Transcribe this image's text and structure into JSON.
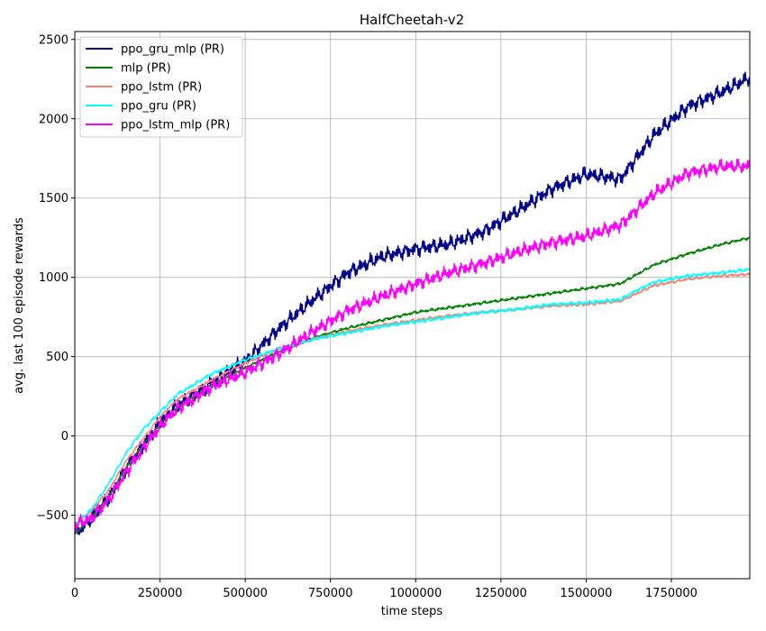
{
  "chart_data": {
    "type": "line",
    "title": "HalfCheetah-v2",
    "xlabel": "time steps",
    "ylabel": "avg. last 100 episode rewards",
    "xlim": [
      0,
      1980000
    ],
    "ylim": [
      -900,
      2550
    ],
    "xticks": [
      0,
      250000,
      500000,
      750000,
      1000000,
      1250000,
      1500000,
      1750000
    ],
    "yticks": [
      -500,
      0,
      500,
      1000,
      1500,
      2000,
      2500
    ],
    "xtick_labels": [
      "0",
      "250000",
      "500000",
      "750000",
      "1000000",
      "1250000",
      "1500000",
      "1750000"
    ],
    "ytick_labels": [
      "−500",
      "0",
      "500",
      "1000",
      "1500",
      "2000",
      "2500"
    ],
    "grid": true,
    "legend_position": "top-left",
    "series": [
      {
        "name": "ppo_gru_mlp (PR)",
        "color": "#00008b",
        "noise": 60,
        "x": [
          0,
          50000,
          100000,
          150000,
          200000,
          250000,
          300000,
          400000,
          500000,
          600000,
          700000,
          800000,
          900000,
          1000000,
          1100000,
          1200000,
          1300000,
          1400000,
          1500000,
          1600000,
          1650000,
          1700000,
          1800000,
          1900000,
          1980000
        ],
        "y": [
          -620,
          -520,
          -390,
          -200,
          -60,
          80,
          190,
          330,
          470,
          680,
          860,
          1030,
          1130,
          1180,
          1210,
          1290,
          1420,
          1560,
          1650,
          1620,
          1760,
          1900,
          2080,
          2170,
          2260
        ]
      },
      {
        "name": "mlp (PR)",
        "color": "#008000",
        "noise": 12,
        "x": [
          0,
          50000,
          100000,
          150000,
          200000,
          250000,
          300000,
          400000,
          500000,
          600000,
          700000,
          800000,
          900000,
          1000000,
          1100000,
          1200000,
          1300000,
          1400000,
          1500000,
          1600000,
          1650000,
          1700000,
          1800000,
          1900000,
          1980000
        ],
        "y": [
          -620,
          -510,
          -380,
          -200,
          -60,
          70,
          180,
          320,
          430,
          530,
          620,
          680,
          730,
          780,
          810,
          840,
          870,
          900,
          930,
          960,
          1020,
          1080,
          1150,
          1210,
          1250
        ]
      },
      {
        "name": "ppo_lstm (PR)",
        "color": "#fa8072",
        "noise": 12,
        "x": [
          0,
          50000,
          100000,
          150000,
          200000,
          250000,
          300000,
          400000,
          500000,
          600000,
          700000,
          800000,
          900000,
          1000000,
          1100000,
          1200000,
          1300000,
          1400000,
          1500000,
          1600000,
          1650000,
          1700000,
          1800000,
          1900000,
          1980000
        ],
        "y": [
          -560,
          -470,
          -340,
          -160,
          -20,
          120,
          230,
          350,
          460,
          550,
          610,
          660,
          700,
          730,
          760,
          780,
          800,
          820,
          830,
          850,
          900,
          950,
          990,
          1010,
          1020
        ]
      },
      {
        "name": "ppo_gru (PR)",
        "color": "#00ffff",
        "noise": 14,
        "x": [
          0,
          50000,
          100000,
          150000,
          200000,
          250000,
          300000,
          400000,
          500000,
          600000,
          700000,
          800000,
          900000,
          1000000,
          1100000,
          1200000,
          1300000,
          1400000,
          1500000,
          1600000,
          1650000,
          1700000,
          1800000,
          1900000,
          1980000
        ],
        "y": [
          -560,
          -460,
          -300,
          -110,
          40,
          150,
          260,
          390,
          480,
          550,
          610,
          650,
          690,
          720,
          750,
          780,
          800,
          830,
          840,
          860,
          920,
          970,
          1010,
          1030,
          1050
        ]
      },
      {
        "name": "ppo_lstm_mlp (PR)",
        "color": "#ff00ff",
        "noise": 55,
        "x": [
          0,
          50000,
          100000,
          150000,
          200000,
          250000,
          300000,
          400000,
          500000,
          600000,
          700000,
          800000,
          900000,
          1000000,
          1100000,
          1200000,
          1300000,
          1400000,
          1500000,
          1600000,
          1650000,
          1700000,
          1800000,
          1900000,
          1980000
        ],
        "y": [
          -560,
          -520,
          -400,
          -230,
          -80,
          60,
          170,
          310,
          400,
          520,
          660,
          790,
          880,
          960,
          1030,
          1090,
          1160,
          1220,
          1260,
          1330,
          1430,
          1530,
          1660,
          1700,
          1700
        ]
      }
    ]
  }
}
